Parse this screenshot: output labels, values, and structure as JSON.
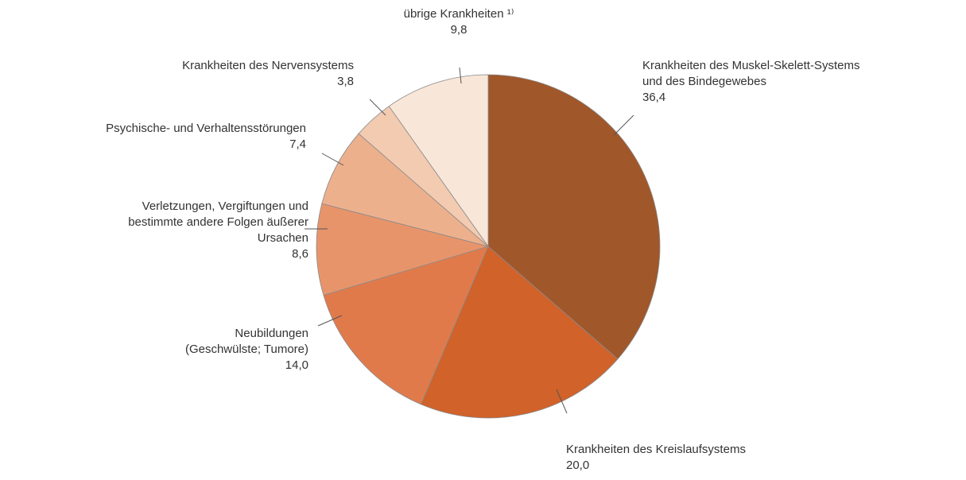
{
  "chart_data": {
    "type": "pie",
    "categories": [
      "Krankheiten des Muskel-Skelett-Systems\nund des Bindegewebes",
      "Krankheiten des Kreislaufsystems",
      "Neubildungen\n(Geschwülste; Tumore)",
      "Verletzungen, Vergiftungen und\nbestimmte andere Folgen äußerer\nUrsachen",
      "Psychische- und Verhaltensstörungen",
      "Krankheiten des Nervensystems",
      "übrige Krankheiten ¹⁾"
    ],
    "values": [
      36.4,
      20.0,
      14.0,
      8.6,
      7.4,
      3.8,
      9.8
    ],
    "value_labels": [
      "36,4",
      "20,0",
      "14,0",
      "8,6",
      "7,4",
      "3,8",
      "9,8"
    ],
    "colors": [
      "#a0572a",
      "#d0622a",
      "#e17a4b",
      "#e8946a",
      "#edb08d",
      "#f2cbb1",
      "#f8e6d9"
    ]
  }
}
